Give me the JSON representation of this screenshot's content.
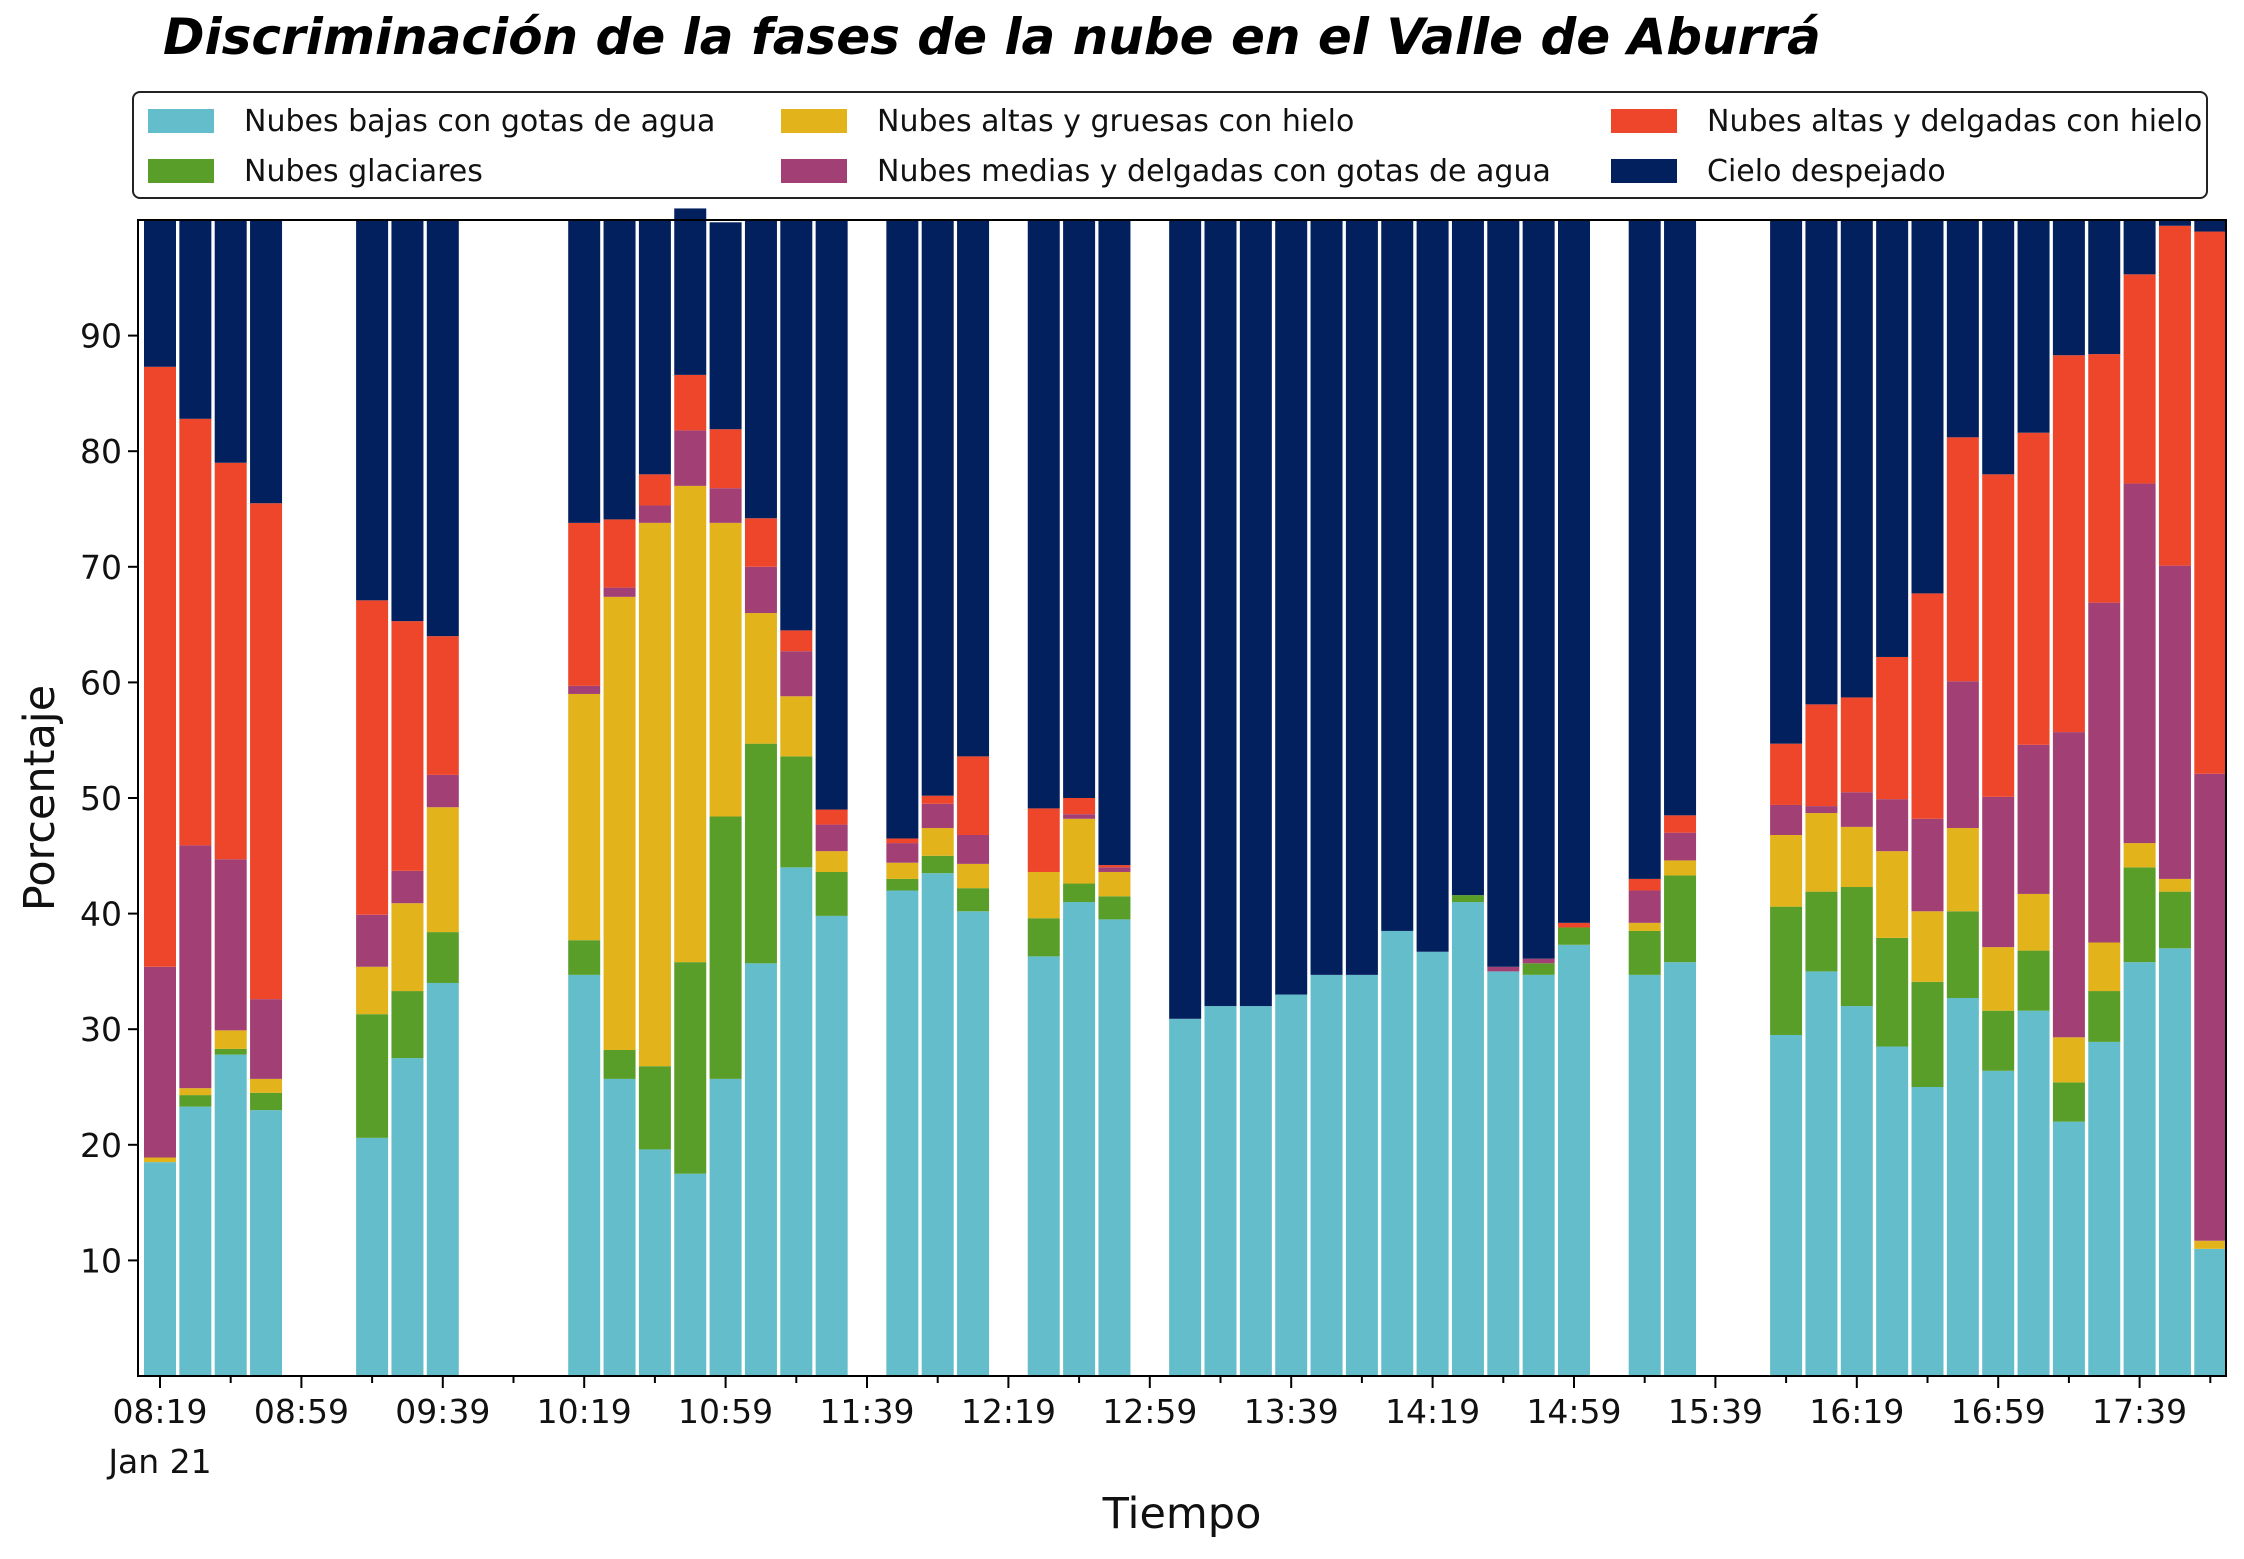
{
  "colors": {
    "nubes_bajas": "#64BDCA",
    "glaciares": "#5A9E2A",
    "altas_gruesas": "#E2B31A",
    "medias_delgadas": "#A24075",
    "altas_delgadas": "#EE462B",
    "despejado": "#02205E"
  },
  "chart_data": {
    "type": "bar",
    "stacked": true,
    "title": "Discriminación de la fases de la nube en el Valle de Aburrá",
    "xlabel": "Tiempo",
    "ylabel": "Porcentaje",
    "ylim": [
      0,
      100
    ],
    "yticks": [
      10,
      20,
      30,
      40,
      50,
      60,
      70,
      80,
      90
    ],
    "date_label": "Jan 21",
    "x_major_ticks": [
      "08:19",
      "08:59",
      "09:39",
      "10:19",
      "10:59",
      "11:39",
      "12:19",
      "12:59",
      "13:39",
      "14:19",
      "14:59",
      "15:39",
      "16:19",
      "16:59",
      "17:39"
    ],
    "x_interval_minutes": 10,
    "legend": {
      "placement": "top",
      "columns": 3
    },
    "times": [
      "08:19",
      "08:29",
      "08:39",
      "08:49",
      "08:59",
      "09:09",
      "09:19",
      "09:29",
      "09:39",
      "09:49",
      "09:59",
      "10:09",
      "10:19",
      "10:29",
      "10:39",
      "10:49",
      "10:59",
      "11:09",
      "11:19",
      "11:29",
      "11:39",
      "11:49",
      "11:59",
      "12:09",
      "12:19",
      "12:29",
      "12:39",
      "12:49",
      "12:59",
      "13:09",
      "13:19",
      "13:29",
      "13:39",
      "13:49",
      "13:59",
      "14:09",
      "14:19",
      "14:29",
      "14:39",
      "14:49",
      "14:59",
      "15:09",
      "15:19",
      "15:29",
      "15:39",
      "15:49",
      "15:59",
      "16:09",
      "16:19",
      "16:29",
      "16:39",
      "16:49",
      "16:59",
      "17:09",
      "17:19",
      "17:29",
      "17:39",
      "17:49",
      "17:59"
    ],
    "series": [
      {
        "name": "Nubes bajas con gotas de agua",
        "color_key": "nubes_bajas",
        "values": [
          18.5,
          23.3,
          27.8,
          23.0,
          null,
          null,
          20.6,
          27.5,
          34.0,
          null,
          null,
          null,
          34.7,
          25.7,
          19.6,
          17.5,
          25.7,
          35.7,
          44.0,
          39.8,
          null,
          42.0,
          43.5,
          40.2,
          null,
          36.3,
          41.0,
          39.5,
          null,
          30.9,
          32.0,
          32.0,
          33.0,
          34.7,
          34.7,
          38.5,
          36.7,
          41.0,
          35.0,
          34.7,
          37.3,
          null,
          34.7,
          35.8,
          null,
          null,
          29.5,
          35.0,
          32.0,
          28.5,
          25.0,
          32.7,
          26.4,
          31.6,
          22.0,
          28.9,
          35.8,
          37.0,
          11.0
        ]
      },
      {
        "name": "Nubes glaciares",
        "color_key": "glaciares",
        "values": [
          0.0,
          1.0,
          0.5,
          1.5,
          null,
          null,
          10.7,
          5.8,
          4.4,
          null,
          null,
          null,
          3.0,
          2.5,
          7.2,
          18.3,
          22.7,
          19.0,
          9.6,
          3.8,
          null,
          1.0,
          1.5,
          2.0,
          null,
          3.3,
          1.6,
          2.0,
          null,
          0,
          0,
          0,
          0,
          0,
          0,
          0,
          0,
          0.6,
          0,
          1.0,
          1.5,
          null,
          3.8,
          7.5,
          null,
          null,
          11.1,
          6.9,
          10.3,
          9.4,
          9.1,
          7.5,
          5.2,
          5.2,
          3.4,
          4.4,
          8.2,
          4.9,
          0
        ]
      },
      {
        "name": "Nubes altas y gruesas con hielo",
        "color_key": "altas_gruesas",
        "values": [
          0.4,
          0.6,
          1.6,
          1.2,
          null,
          null,
          4.1,
          7.6,
          10.8,
          null,
          null,
          null,
          21.3,
          39.2,
          47.0,
          41.2,
          25.4,
          11.3,
          5.2,
          1.8,
          null,
          1.4,
          2.4,
          2.1,
          null,
          4.0,
          5.6,
          2.1,
          null,
          0,
          0,
          0,
          0,
          0,
          0,
          0,
          0,
          0,
          0,
          0,
          0,
          null,
          0.7,
          1.3,
          null,
          null,
          6.2,
          6.8,
          5.2,
          7.5,
          6.1,
          7.2,
          5.5,
          4.9,
          3.9,
          4.2,
          2.1,
          1.1,
          0.7
        ]
      },
      {
        "name": "Nubes medias y delgadas con gotas de agua",
        "color_key": "medias_delgadas",
        "values": [
          16.5,
          21.0,
          14.8,
          6.9,
          null,
          null,
          4.5,
          2.8,
          2.8,
          null,
          null,
          null,
          0.7,
          0.8,
          1.5,
          4.8,
          3.0,
          4.0,
          3.9,
          2.3,
          null,
          1.7,
          2.1,
          2.5,
          null,
          0,
          0.4,
          0.4,
          null,
          0,
          0,
          0,
          0,
          0,
          0,
          0,
          0,
          0,
          0.4,
          0.4,
          0,
          null,
          2.8,
          2.4,
          null,
          null,
          2.6,
          0.6,
          3.0,
          4.5,
          8.0,
          12.7,
          13.0,
          12.9,
          26.4,
          29.4,
          31.1,
          27.1,
          40.4
        ]
      },
      {
        "name": "Nubes altas y delgadas con hielo",
        "color_key": "altas_delgadas",
        "values": [
          51.9,
          36.9,
          34.3,
          42.9,
          null,
          null,
          27.2,
          21.6,
          12.0,
          null,
          null,
          null,
          14.1,
          5.9,
          2.7,
          4.8,
          5.1,
          4.2,
          1.8,
          1.3,
          null,
          0.4,
          0.7,
          6.8,
          null,
          5.5,
          1.4,
          0.2,
          null,
          0,
          0,
          0,
          0,
          0,
          0,
          0,
          0,
          0,
          0,
          0,
          0.4,
          null,
          1.0,
          1.5,
          null,
          null,
          5.3,
          8.8,
          8.2,
          12.3,
          19.5,
          21.1,
          27.9,
          27.0,
          32.6,
          21.5,
          18.1,
          29.4,
          46.9
        ]
      },
      {
        "name": "Cielo despejado",
        "color_key": "despejado",
        "values": [
          12.7,
          17.2,
          21.0,
          24.5,
          null,
          null,
          32.9,
          34.7,
          36.0,
          null,
          null,
          null,
          26.2,
          25.9,
          22.0,
          14.4,
          17.9,
          25.8,
          35.5,
          51.0,
          null,
          53.5,
          49.8,
          46.4,
          null,
          50.9,
          50.0,
          55.8,
          null,
          69.1,
          68.0,
          68.0,
          67.0,
          65.3,
          65.3,
          61.5,
          63.3,
          58.4,
          64.6,
          63.9,
          60.8,
          null,
          57.0,
          51.5,
          null,
          null,
          45.3,
          41.9,
          41.3,
          37.8,
          32.3,
          18.8,
          22.0,
          18.4,
          11.7,
          11.6,
          4.7,
          0.5,
          1.0
        ]
      }
    ]
  }
}
